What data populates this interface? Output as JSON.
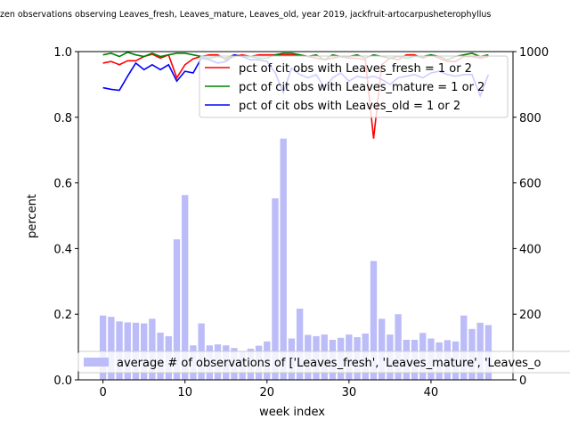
{
  "chart_data": {
    "type": "bar+line",
    "title": "zen observations observing Leaves_fresh, Leaves_mature, Leaves_old, year 2019, jackfruit-artocarpusheterophyllus",
    "xlabel": "week index",
    "ylabel": "percent",
    "xlim": [
      -3,
      50
    ],
    "ylim": [
      0,
      1.0
    ],
    "ylim_right": [
      0,
      1000
    ],
    "x_ticks": [
      0,
      10,
      20,
      30,
      40
    ],
    "y_ticks": [
      "0.0",
      "0.2",
      "0.4",
      "0.6",
      "0.8",
      "1.0"
    ],
    "y_ticks_right": [
      "0",
      "200",
      "400",
      "600",
      "800",
      "1000"
    ],
    "x": [
      0,
      1,
      2,
      3,
      4,
      5,
      6,
      7,
      8,
      9,
      10,
      11,
      12,
      13,
      14,
      15,
      16,
      17,
      18,
      19,
      20,
      21,
      22,
      23,
      24,
      25,
      26,
      27,
      28,
      29,
      30,
      31,
      32,
      33,
      34,
      35,
      36,
      37,
      38,
      39,
      40,
      41,
      42,
      43,
      44,
      45,
      46,
      47
    ],
    "bars": {
      "name": "average # of observations of ['Leaves_fresh', 'Leaves_mature', 'Leaves_o",
      "color": "#bcbcf8",
      "values": [
        196,
        192,
        178,
        175,
        174,
        172,
        186,
        144,
        133,
        428,
        563,
        105,
        172,
        105,
        108,
        105,
        97,
        86,
        95,
        104,
        117,
        553,
        735,
        126,
        217,
        137,
        133,
        138,
        122,
        128,
        138,
        130,
        141,
        362,
        186,
        138,
        200,
        122,
        122,
        143,
        126,
        114,
        121,
        117,
        196,
        155,
        174,
        167
      ]
    },
    "series": [
      {
        "name": "pct of cit obs with Leaves_fresh = 1 or 2",
        "color": "#ff0000",
        "values": [
          0.965,
          0.97,
          0.96,
          0.972,
          0.972,
          0.985,
          0.992,
          0.98,
          0.99,
          0.92,
          0.96,
          0.978,
          0.985,
          0.99,
          0.99,
          0.975,
          0.985,
          0.99,
          0.985,
          0.99,
          0.99,
          0.99,
          0.99,
          0.99,
          0.99,
          0.985,
          0.98,
          0.975,
          0.98,
          0.985,
          0.98,
          0.98,
          0.975,
          0.735,
          0.96,
          0.98,
          0.975,
          0.99,
          0.99,
          0.98,
          0.99,
          0.98,
          0.97,
          0.97,
          0.985,
          0.985,
          0.98,
          0.985
        ]
      },
      {
        "name": "pct of cit obs with Leaves_mature = 1 or 2",
        "color": "#008000",
        "values": [
          0.99,
          0.995,
          0.985,
          0.998,
          0.99,
          0.985,
          0.995,
          0.985,
          0.99,
          0.995,
          0.995,
          0.99,
          0.985,
          0.98,
          0.985,
          0.98,
          0.99,
          0.985,
          0.985,
          0.98,
          0.98,
          0.99,
          0.995,
          0.995,
          0.99,
          0.985,
          0.99,
          0.975,
          0.99,
          0.985,
          0.985,
          0.99,
          0.98,
          0.99,
          0.985,
          0.98,
          0.985,
          0.98,
          0.985,
          0.985,
          0.99,
          0.985,
          0.975,
          0.985,
          0.99,
          0.995,
          0.985,
          0.99
        ]
      },
      {
        "name": "pct of cit obs with Leaves_old = 1 or 2",
        "color": "#0000ff",
        "values": [
          0.89,
          0.885,
          0.882,
          0.925,
          0.965,
          0.945,
          0.96,
          0.945,
          0.96,
          0.91,
          0.94,
          0.935,
          0.98,
          0.975,
          0.965,
          0.97,
          0.99,
          0.985,
          0.975,
          0.975,
          0.97,
          0.935,
          0.875,
          0.95,
          0.93,
          0.92,
          0.93,
          0.89,
          0.92,
          0.935,
          0.91,
          0.925,
          0.92,
          0.925,
          0.915,
          0.9,
          0.92,
          0.925,
          0.93,
          0.92,
          0.935,
          0.94,
          0.93,
          0.925,
          0.93,
          0.93,
          0.865,
          0.93
        ]
      }
    ],
    "legend_lines_placement": "top-right",
    "legend_bars_placement": "lower-right",
    "grid": false
  }
}
